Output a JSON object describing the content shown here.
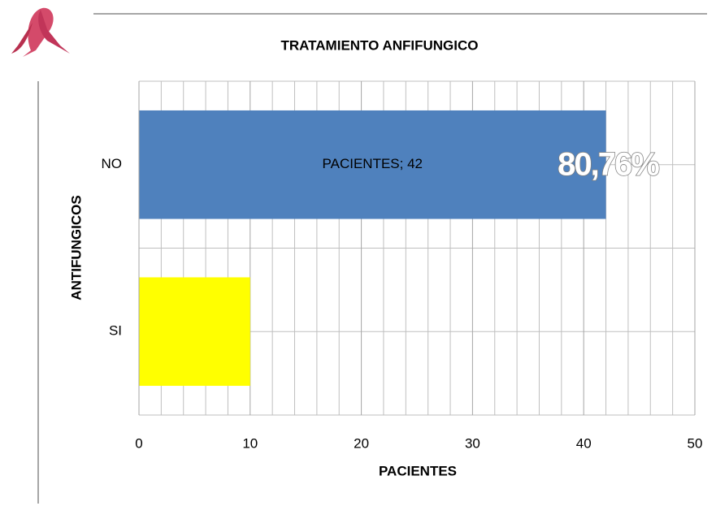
{
  "chart_data": {
    "type": "hbar",
    "title": "TRATAMIENTO ANFIFUNGICO",
    "x_label": "PACIENTES",
    "y_label": "ANTIFUNGICOS",
    "categories": [
      "NO",
      "SI"
    ],
    "values": [
      42,
      10
    ],
    "value_labels": [
      "PACIENTES; 42",
      null
    ],
    "colors": [
      "#4f81bd",
      "#ffff00"
    ],
    "annotation": "80,76%",
    "xlim": [
      0,
      50
    ],
    "xticks": [
      0,
      10,
      20,
      30,
      40,
      50
    ],
    "xminorticks": [
      2,
      4,
      6,
      8,
      12,
      14,
      16,
      18,
      22,
      24,
      26,
      28,
      32,
      34,
      36,
      38,
      42,
      44,
      46,
      48
    ],
    "grid": true
  }
}
